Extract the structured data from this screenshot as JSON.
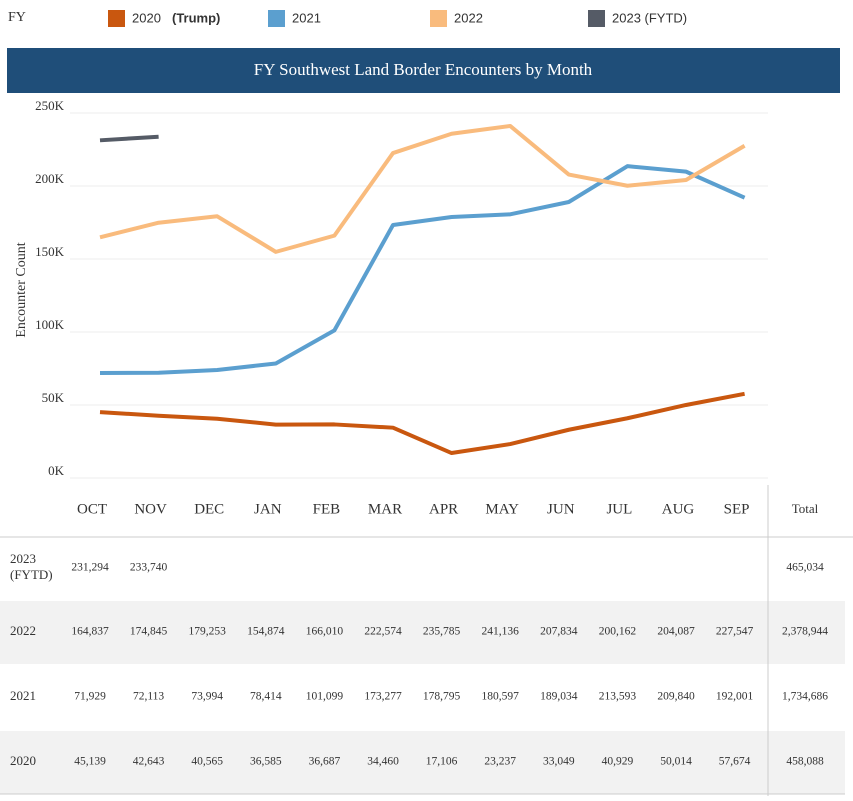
{
  "chart_data": {
    "type": "line",
    "legend_title": "FY",
    "title": "FY Southwest Land Border Encounters by Month",
    "y_label": "Encounter Count",
    "categories": [
      "OCT",
      "NOV",
      "DEC",
      "JAN",
      "FEB",
      "MAR",
      "APR",
      "MAY",
      "JUN",
      "JUL",
      "AUG",
      "SEP"
    ],
    "total_header": "Total",
    "ylim": [
      0,
      250000
    ],
    "yticks": [
      {
        "value": 0,
        "label": "0K"
      },
      {
        "value": 50000,
        "label": "50K"
      },
      {
        "value": 100000,
        "label": "100K"
      },
      {
        "value": 150000,
        "label": "150K"
      },
      {
        "value": 200000,
        "label": "200K"
      },
      {
        "value": 250000,
        "label": "250K"
      }
    ],
    "grid": true,
    "series": [
      {
        "name": "2020",
        "name_note": "(Trump)",
        "row_label": "2020",
        "color": "#c9570f",
        "values": [
          45139,
          42643,
          40565,
          36585,
          36687,
          34460,
          17106,
          23237,
          33049,
          40929,
          50014,
          57674
        ],
        "value_labels": [
          "45,139",
          "42,643",
          "40,565",
          "36,585",
          "36,687",
          "34,460",
          "17,106",
          "23,237",
          "33,049",
          "40,929",
          "50,014",
          "57,674"
        ],
        "total": "458,088"
      },
      {
        "name": "2021",
        "row_label": "2021",
        "color": "#5b9fcf",
        "values": [
          71929,
          72113,
          73994,
          78414,
          101099,
          173277,
          178795,
          180597,
          189034,
          213593,
          209840,
          192001
        ],
        "value_labels": [
          "71,929",
          "72,113",
          "73,994",
          "78,414",
          "101,099",
          "173,277",
          "178,795",
          "180,597",
          "189,034",
          "213,593",
          "209,840",
          "192,001"
        ],
        "total": "1,734,686"
      },
      {
        "name": "2022",
        "row_label": "2022",
        "color": "#f9bb7d",
        "values": [
          164837,
          174845,
          179253,
          154874,
          166010,
          222574,
          235785,
          241136,
          207834,
          200162,
          204087,
          227547
        ],
        "value_labels": [
          "164,837",
          "174,845",
          "179,253",
          "154,874",
          "166,010",
          "222,574",
          "235,785",
          "241,136",
          "207,834",
          "200,162",
          "204,087",
          "227,547"
        ],
        "total": "2,378,944"
      },
      {
        "name": "2023 (FYTD)",
        "row_label": "2023 (FYTD)",
        "color": "#555b66",
        "values": [
          231294,
          233740,
          null,
          null,
          null,
          null,
          null,
          null,
          null,
          null,
          null,
          null
        ],
        "value_labels": [
          "231,294",
          "233,740",
          null,
          null,
          null,
          null,
          null,
          null,
          null,
          null,
          null,
          null
        ],
        "total": "465,034"
      }
    ]
  }
}
